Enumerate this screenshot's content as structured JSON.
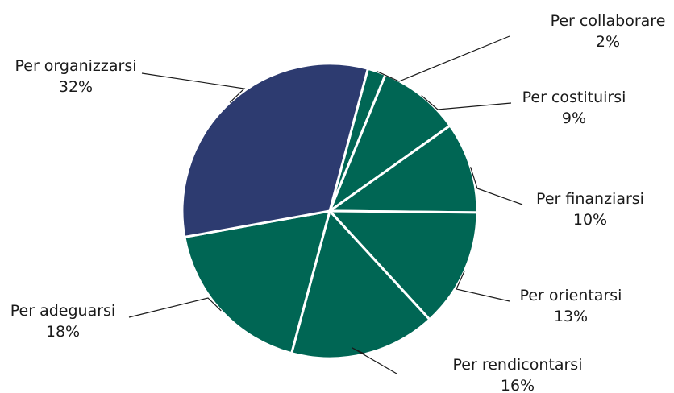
{
  "chart_data": {
    "type": "pie",
    "title": "",
    "colors": {
      "highlight": "#2d3b70",
      "default": "#006654"
    },
    "slices": [
      {
        "label": "Per collaborare",
        "value": 2,
        "value_label": "2%",
        "color": "#006654"
      },
      {
        "label": "Per costituirsi",
        "value": 9,
        "value_label": "9%",
        "color": "#006654"
      },
      {
        "label": "Per finanziarsi",
        "value": 10,
        "value_label": "10%",
        "color": "#006654"
      },
      {
        "label": "Per orientarsi",
        "value": 13,
        "value_label": "13%",
        "color": "#006654"
      },
      {
        "label": "Per rendicontarsi",
        "value": 16,
        "value_label": "16%",
        "color": "#006654"
      },
      {
        "label": "Per adeguarsi",
        "value": 18,
        "value_label": "18%",
        "color": "#006654"
      },
      {
        "label": "Per organizzarsi",
        "value": 32,
        "value_label": "32%",
        "color": "#2d3b70"
      }
    ],
    "start_angle_deg": 15,
    "direction": "clockwise",
    "legend": "none",
    "label_style": "outside labels with leader lines"
  }
}
